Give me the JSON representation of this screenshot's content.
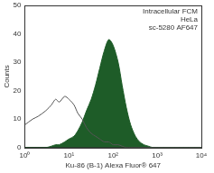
{
  "chart_data": {
    "type": "line",
    "xlabel": "Ku-86 (B-1) Alexa Fluor® 647",
    "ylabel": "Counts",
    "annotations": [
      "Intracellular FCM",
      "HeLa",
      "sc-5280 AF647"
    ],
    "log": "x",
    "grid": false,
    "xlim": [
      1,
      10000
    ],
    "xticks": [
      {
        "value": 1,
        "label": "10⁰"
      },
      {
        "value": 10,
        "label": "10¹"
      },
      {
        "value": 100,
        "label": "10²"
      },
      {
        "value": 1000,
        "label": "10³"
      },
      {
        "value": 10000,
        "label": "10⁴"
      }
    ],
    "ylim": [
      0,
      50
    ],
    "yticks": [
      0,
      10,
      20,
      30,
      40,
      50
    ],
    "x": [
      1,
      1.5,
      2,
      3,
      4,
      5,
      6,
      8,
      10,
      13,
      16,
      20,
      25,
      32,
      40,
      50,
      63,
      80,
      100,
      130,
      160,
      200,
      250,
      320,
      400,
      500,
      630,
      800,
      1000,
      2000,
      5000,
      10000
    ],
    "series": [
      {
        "type": "area",
        "color": "#1e5c28",
        "values": [
          0,
          0,
          0,
          0,
          0.5,
          1,
          1,
          2,
          3,
          4,
          6,
          9,
          13,
          17,
          22,
          28,
          34,
          38,
          36,
          30,
          22,
          14,
          8,
          4,
          2,
          1,
          0.5,
          0,
          0,
          0,
          0,
          0
        ]
      },
      {
        "type": "line",
        "color": "#555555",
        "values": [
          8,
          10,
          11,
          13,
          15,
          17,
          16,
          18,
          17,
          15,
          12,
          10,
          7,
          5,
          4,
          3,
          2,
          2,
          1,
          1,
          0.5,
          0,
          0,
          0,
          0,
          0,
          0,
          0,
          0,
          0,
          0,
          0
        ]
      }
    ]
  }
}
